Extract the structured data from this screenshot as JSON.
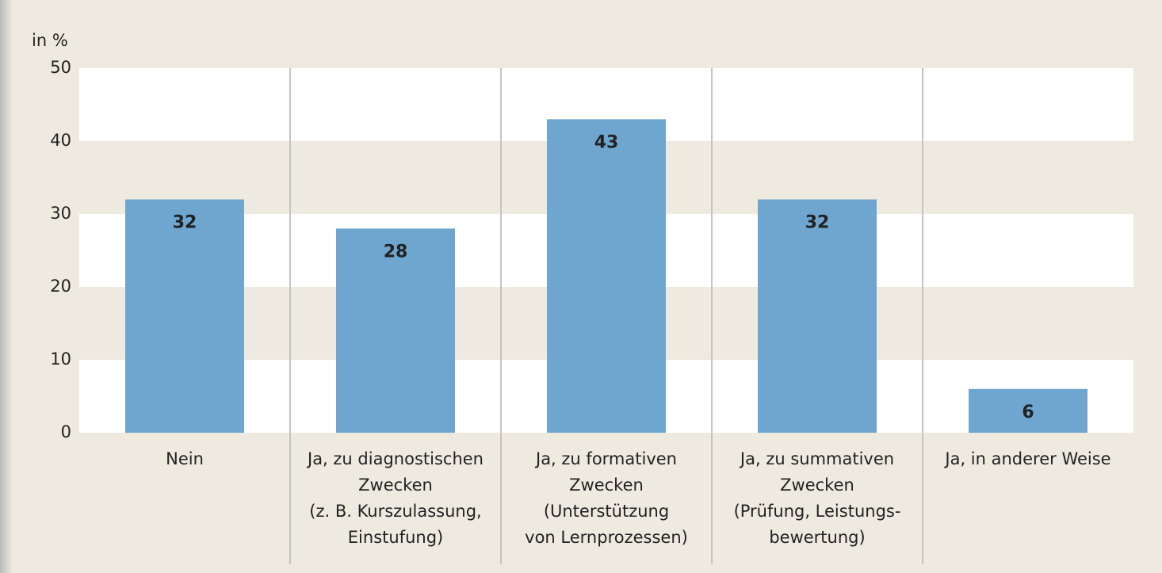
{
  "chart_data": {
    "type": "bar",
    "y_label": "in %",
    "categories": [
      "Nein",
      "Ja, zu diagnostischen\nZwecken\n(z. B. Kurszulassung,\nEinstufung)",
      "Ja, zu formativen\nZwecken\n(Unterstützung\nvon Lernprozessen)",
      "Ja, zu summativen\nZwecken\n(Prüfung, Leistungs-\nbewertung)",
      "Ja, in anderer Weise"
    ],
    "values": [
      32,
      28,
      43,
      32,
      6
    ],
    "color": "#6fa6d0",
    "ylim": [
      0,
      50
    ],
    "yticks": [
      0,
      10,
      20,
      30,
      40,
      50
    ],
    "grid": true
  }
}
